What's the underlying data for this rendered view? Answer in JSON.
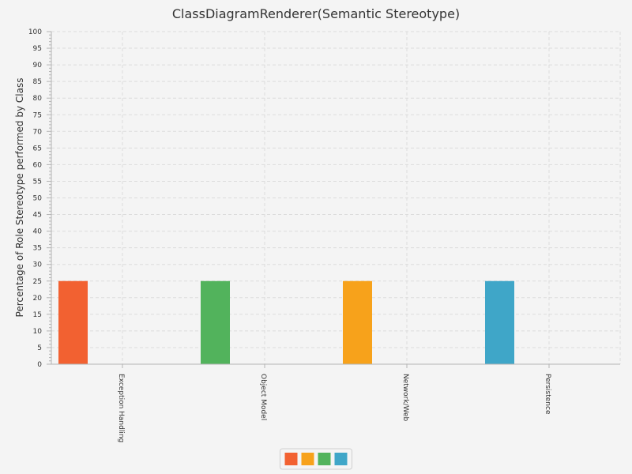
{
  "chart_data": {
    "type": "bar",
    "title": "ClassDiagramRenderer(Semantic Stereotype)",
    "xlabel": "",
    "ylabel": "Percentage of Role Stereotype performed by Class",
    "categories": [
      "Exception Handling",
      "Object Model",
      "Network/Web",
      "Persistence"
    ],
    "series": [
      {
        "color": "#f26131",
        "values": [
          25,
          0,
          0,
          0
        ]
      },
      {
        "color": "#f7a21b",
        "values": [
          0,
          0,
          25,
          0
        ]
      },
      {
        "color": "#52b35c",
        "values": [
          0,
          25,
          0,
          0
        ]
      },
      {
        "color": "#3fa6c8",
        "values": [
          0,
          0,
          0,
          25
        ]
      }
    ],
    "ylim": [
      0,
      100
    ],
    "ytick_step": 5,
    "ytick_labels": [
      "0",
      "5",
      "10",
      "15",
      "20",
      "25",
      "30",
      "35",
      "40",
      "45",
      "50",
      "55",
      "60",
      "65",
      "70",
      "75",
      "80",
      "85",
      "90",
      "95",
      "100"
    ],
    "grid": true,
    "legend_position": "bottom"
  }
}
